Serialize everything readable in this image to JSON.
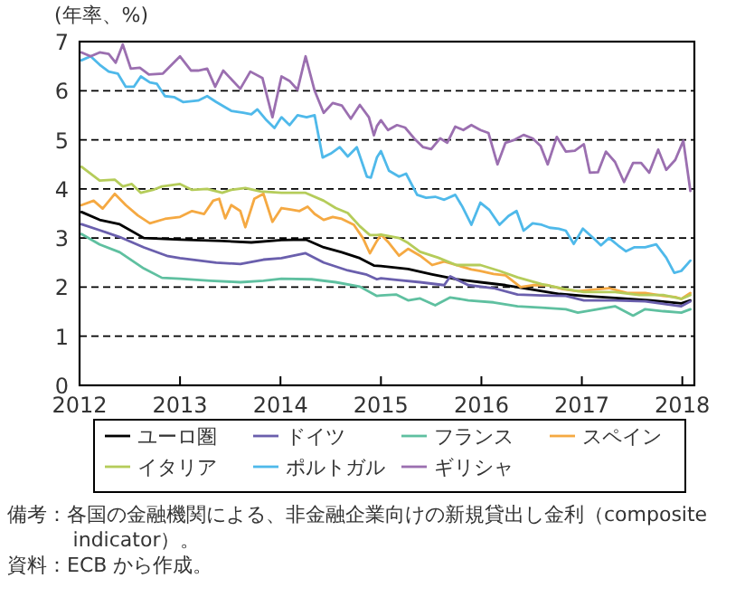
{
  "chart_data": {
    "type": "line",
    "ylabel": "(年率、%)",
    "xlim": [
      2012,
      2018.12
    ],
    "xticks": [
      2012,
      2013,
      2014,
      2015,
      2016,
      2017,
      2018
    ],
    "ylim": [
      0,
      7
    ],
    "yticks": [
      0,
      1,
      2,
      3,
      4,
      5,
      6,
      7
    ],
    "grid": "y",
    "legend": "bottom",
    "series": [
      {
        "name": "ユーロ圏",
        "color": "#000000",
        "x": [
          2012.02,
          2012.2,
          2012.4,
          2012.64,
          2013.0,
          2013.42,
          2013.71,
          2014.01,
          2014.25,
          2014.43,
          2014.61,
          2014.79,
          2014.93,
          2015.0,
          2015.27,
          2015.51,
          2015.75,
          2015.99,
          2016.24,
          2016.48,
          2016.78,
          2017.02,
          2017.33,
          2017.69,
          2017.99,
          2018.08
        ],
        "values": [
          3.53,
          3.37,
          3.28,
          3.0,
          2.97,
          2.94,
          2.91,
          2.96,
          2.97,
          2.81,
          2.71,
          2.59,
          2.44,
          2.43,
          2.37,
          2.26,
          2.16,
          2.1,
          2.04,
          1.96,
          1.86,
          1.82,
          1.78,
          1.73,
          1.67,
          1.73
        ]
      },
      {
        "name": "ドイツ",
        "color": "#6a5fad",
        "x": [
          2012.02,
          2012.2,
          2012.4,
          2012.64,
          2012.88,
          2013.0,
          2013.36,
          2013.6,
          2013.83,
          2014.01,
          2014.25,
          2014.43,
          2014.67,
          2014.85,
          2014.96,
          2015.0,
          2015.15,
          2015.39,
          2015.63,
          2015.69,
          2015.87,
          2016.12,
          2016.36,
          2016.6,
          2016.84,
          2017.02,
          2017.33,
          2017.63,
          2017.99,
          2018.08
        ],
        "values": [
          3.28,
          3.16,
          3.02,
          2.81,
          2.63,
          2.59,
          2.5,
          2.47,
          2.56,
          2.59,
          2.69,
          2.5,
          2.34,
          2.26,
          2.16,
          2.18,
          2.15,
          2.1,
          2.04,
          2.22,
          2.04,
          1.98,
          1.85,
          1.83,
          1.82,
          1.73,
          1.73,
          1.71,
          1.61,
          1.71
        ]
      },
      {
        "name": "フランス",
        "color": "#5fc0a0",
        "x": [
          2012.02,
          2012.2,
          2012.4,
          2012.64,
          2012.82,
          2013.0,
          2013.3,
          2013.6,
          2013.83,
          2014.01,
          2014.31,
          2014.55,
          2014.79,
          2014.96,
          2015.0,
          2015.15,
          2015.27,
          2015.39,
          2015.54,
          2015.69,
          2015.87,
          2016.12,
          2016.36,
          2016.6,
          2016.84,
          2016.96,
          2017.21,
          2017.33,
          2017.51,
          2017.63,
          2017.81,
          2017.99,
          2018.08
        ],
        "values": [
          3.08,
          2.87,
          2.71,
          2.38,
          2.19,
          2.17,
          2.13,
          2.1,
          2.13,
          2.17,
          2.16,
          2.1,
          2.01,
          1.82,
          1.83,
          1.85,
          1.73,
          1.77,
          1.63,
          1.79,
          1.73,
          1.69,
          1.61,
          1.58,
          1.55,
          1.48,
          1.57,
          1.61,
          1.42,
          1.55,
          1.51,
          1.48,
          1.55
        ]
      },
      {
        "name": "スペイン",
        "color": "#f5a942",
        "x": [
          2012.02,
          2012.14,
          2012.23,
          2012.35,
          2012.46,
          2012.58,
          2012.7,
          2012.85,
          2013.0,
          2013.12,
          2013.24,
          2013.33,
          2013.39,
          2013.45,
          2013.51,
          2013.6,
          2013.65,
          2013.74,
          2013.83,
          2013.92,
          2014.01,
          2014.1,
          2014.19,
          2014.27,
          2014.34,
          2014.43,
          2014.52,
          2014.61,
          2014.73,
          2014.82,
          2014.89,
          2014.96,
          2015.0,
          2015.08,
          2015.18,
          2015.27,
          2015.39,
          2015.51,
          2015.63,
          2015.75,
          2015.9,
          2015.99,
          2016.12,
          2016.24,
          2016.39,
          2016.51,
          2016.66,
          2016.81,
          2016.96,
          2017.12,
          2017.27,
          2017.45,
          2017.63,
          2017.81,
          2017.93,
          2017.99,
          2018.08
        ],
        "values": [
          3.67,
          3.76,
          3.6,
          3.9,
          3.67,
          3.46,
          3.3,
          3.39,
          3.43,
          3.55,
          3.49,
          3.76,
          3.8,
          3.4,
          3.67,
          3.55,
          3.22,
          3.8,
          3.9,
          3.33,
          3.61,
          3.58,
          3.55,
          3.64,
          3.49,
          3.37,
          3.43,
          3.39,
          3.27,
          3.0,
          2.69,
          2.94,
          3.07,
          2.9,
          2.64,
          2.78,
          2.64,
          2.45,
          2.52,
          2.45,
          2.36,
          2.33,
          2.27,
          2.24,
          2.0,
          2.04,
          2.04,
          1.96,
          1.92,
          1.95,
          1.98,
          1.88,
          1.88,
          1.82,
          1.8,
          1.76,
          1.88
        ]
      },
      {
        "name": "イタリア",
        "color": "#b5cc5a",
        "x": [
          2012.02,
          2012.2,
          2012.35,
          2012.43,
          2012.52,
          2012.61,
          2012.73,
          2012.82,
          2013.0,
          2013.12,
          2013.27,
          2013.42,
          2013.51,
          2013.65,
          2013.8,
          2014.01,
          2014.25,
          2014.43,
          2014.55,
          2014.67,
          2014.79,
          2014.89,
          2014.96,
          2015.0,
          2015.18,
          2015.27,
          2015.39,
          2015.57,
          2015.75,
          2015.99,
          2016.18,
          2016.36,
          2016.6,
          2016.84,
          2017.02,
          2017.33,
          2017.57,
          2017.81,
          2017.99,
          2018.08
        ],
        "values": [
          4.45,
          4.17,
          4.19,
          4.05,
          4.1,
          3.92,
          3.98,
          4.05,
          4.1,
          3.98,
          4.0,
          3.92,
          3.98,
          4.02,
          3.95,
          3.92,
          3.92,
          3.76,
          3.61,
          3.51,
          3.24,
          3.06,
          3.06,
          3.07,
          3.0,
          2.9,
          2.72,
          2.6,
          2.45,
          2.45,
          2.33,
          2.2,
          2.06,
          1.96,
          1.9,
          1.9,
          1.84,
          1.84,
          1.76,
          1.84
        ]
      },
      {
        "name": "ポルトガル",
        "color": "#4fb9ea",
        "x": [
          2012.02,
          2012.11,
          2012.2,
          2012.29,
          2012.38,
          2012.46,
          2012.54,
          2012.61,
          2012.7,
          2012.77,
          2012.85,
          2012.94,
          2013.03,
          2013.18,
          2013.27,
          2013.36,
          2013.51,
          2013.63,
          2013.71,
          2013.77,
          2013.86,
          2013.94,
          2014.01,
          2014.09,
          2014.17,
          2014.26,
          2014.34,
          2014.42,
          2014.5,
          2014.59,
          2014.67,
          2014.76,
          2014.86,
          2014.9,
          2014.96,
          2015.0,
          2015.08,
          2015.18,
          2015.25,
          2015.36,
          2015.45,
          2015.54,
          2015.63,
          2015.74,
          2015.81,
          2015.9,
          2015.99,
          2016.08,
          2016.18,
          2016.27,
          2016.35,
          2016.42,
          2016.51,
          2016.6,
          2016.68,
          2016.77,
          2016.84,
          2016.92,
          2017.01,
          2017.12,
          2017.19,
          2017.27,
          2017.36,
          2017.44,
          2017.52,
          2017.63,
          2017.74,
          2017.84,
          2017.92,
          2017.99,
          2018.08
        ],
        "values": [
          6.62,
          6.7,
          6.53,
          6.39,
          6.35,
          6.08,
          6.08,
          6.29,
          6.17,
          6.14,
          5.89,
          5.87,
          5.77,
          5.8,
          5.89,
          5.77,
          5.59,
          5.55,
          5.52,
          5.62,
          5.4,
          5.24,
          5.46,
          5.3,
          5.5,
          5.46,
          5.5,
          4.64,
          4.72,
          4.85,
          4.66,
          4.85,
          4.25,
          4.23,
          4.64,
          4.77,
          4.37,
          4.25,
          4.31,
          3.88,
          3.82,
          3.84,
          3.78,
          3.88,
          3.64,
          3.27,
          3.72,
          3.57,
          3.27,
          3.45,
          3.55,
          3.15,
          3.3,
          3.27,
          3.21,
          3.19,
          3.15,
          2.88,
          3.19,
          2.99,
          2.85,
          3.0,
          2.85,
          2.73,
          2.81,
          2.81,
          2.87,
          2.6,
          2.29,
          2.33,
          2.54
        ]
      },
      {
        "name": "ギリシャ",
        "color": "#9b6fb0",
        "x": [
          2012.02,
          2012.11,
          2012.2,
          2012.29,
          2012.36,
          2012.43,
          2012.51,
          2012.6,
          2012.69,
          2012.83,
          2013.0,
          2013.11,
          2013.18,
          2013.27,
          2013.35,
          2013.43,
          2013.6,
          2013.7,
          2013.82,
          2013.92,
          2014.01,
          2014.09,
          2014.17,
          2014.25,
          2014.34,
          2014.43,
          2014.52,
          2014.61,
          2014.7,
          2014.79,
          2014.88,
          2014.93,
          2014.96,
          2015.0,
          2015.07,
          2015.16,
          2015.24,
          2015.33,
          2015.42,
          2015.5,
          2015.59,
          2015.66,
          2015.74,
          2015.82,
          2015.9,
          2015.99,
          2016.07,
          2016.16,
          2016.24,
          2016.33,
          2016.42,
          2016.51,
          2016.59,
          2016.66,
          2016.75,
          2016.84,
          2016.93,
          2017.02,
          2017.08,
          2017.16,
          2017.24,
          2017.33,
          2017.42,
          2017.51,
          2017.59,
          2017.67,
          2017.76,
          2017.84,
          2017.93,
          2018.01,
          2018.08
        ],
        "values": [
          6.78,
          6.7,
          6.78,
          6.75,
          6.57,
          6.94,
          6.45,
          6.47,
          6.33,
          6.35,
          6.7,
          6.41,
          6.41,
          6.45,
          6.08,
          6.41,
          6.04,
          6.39,
          6.26,
          5.46,
          6.29,
          6.2,
          6.02,
          6.7,
          6.0,
          5.55,
          5.75,
          5.7,
          5.43,
          5.71,
          5.46,
          5.09,
          5.28,
          5.4,
          5.2,
          5.3,
          5.25,
          5.03,
          4.85,
          4.81,
          5.03,
          4.94,
          5.27,
          5.2,
          5.3,
          5.2,
          5.14,
          4.5,
          4.94,
          5.0,
          5.1,
          5.03,
          4.87,
          4.5,
          5.06,
          4.76,
          4.78,
          4.91,
          4.33,
          4.34,
          4.76,
          4.55,
          4.14,
          4.53,
          4.53,
          4.33,
          4.8,
          4.39,
          4.59,
          4.98,
          3.96
        ]
      }
    ],
    "annotations": [
      "備考：各国の金融機関による、非金融企業向けの新規貸出し金利（composite indicator）。",
      "資料：ECB から作成。"
    ]
  }
}
